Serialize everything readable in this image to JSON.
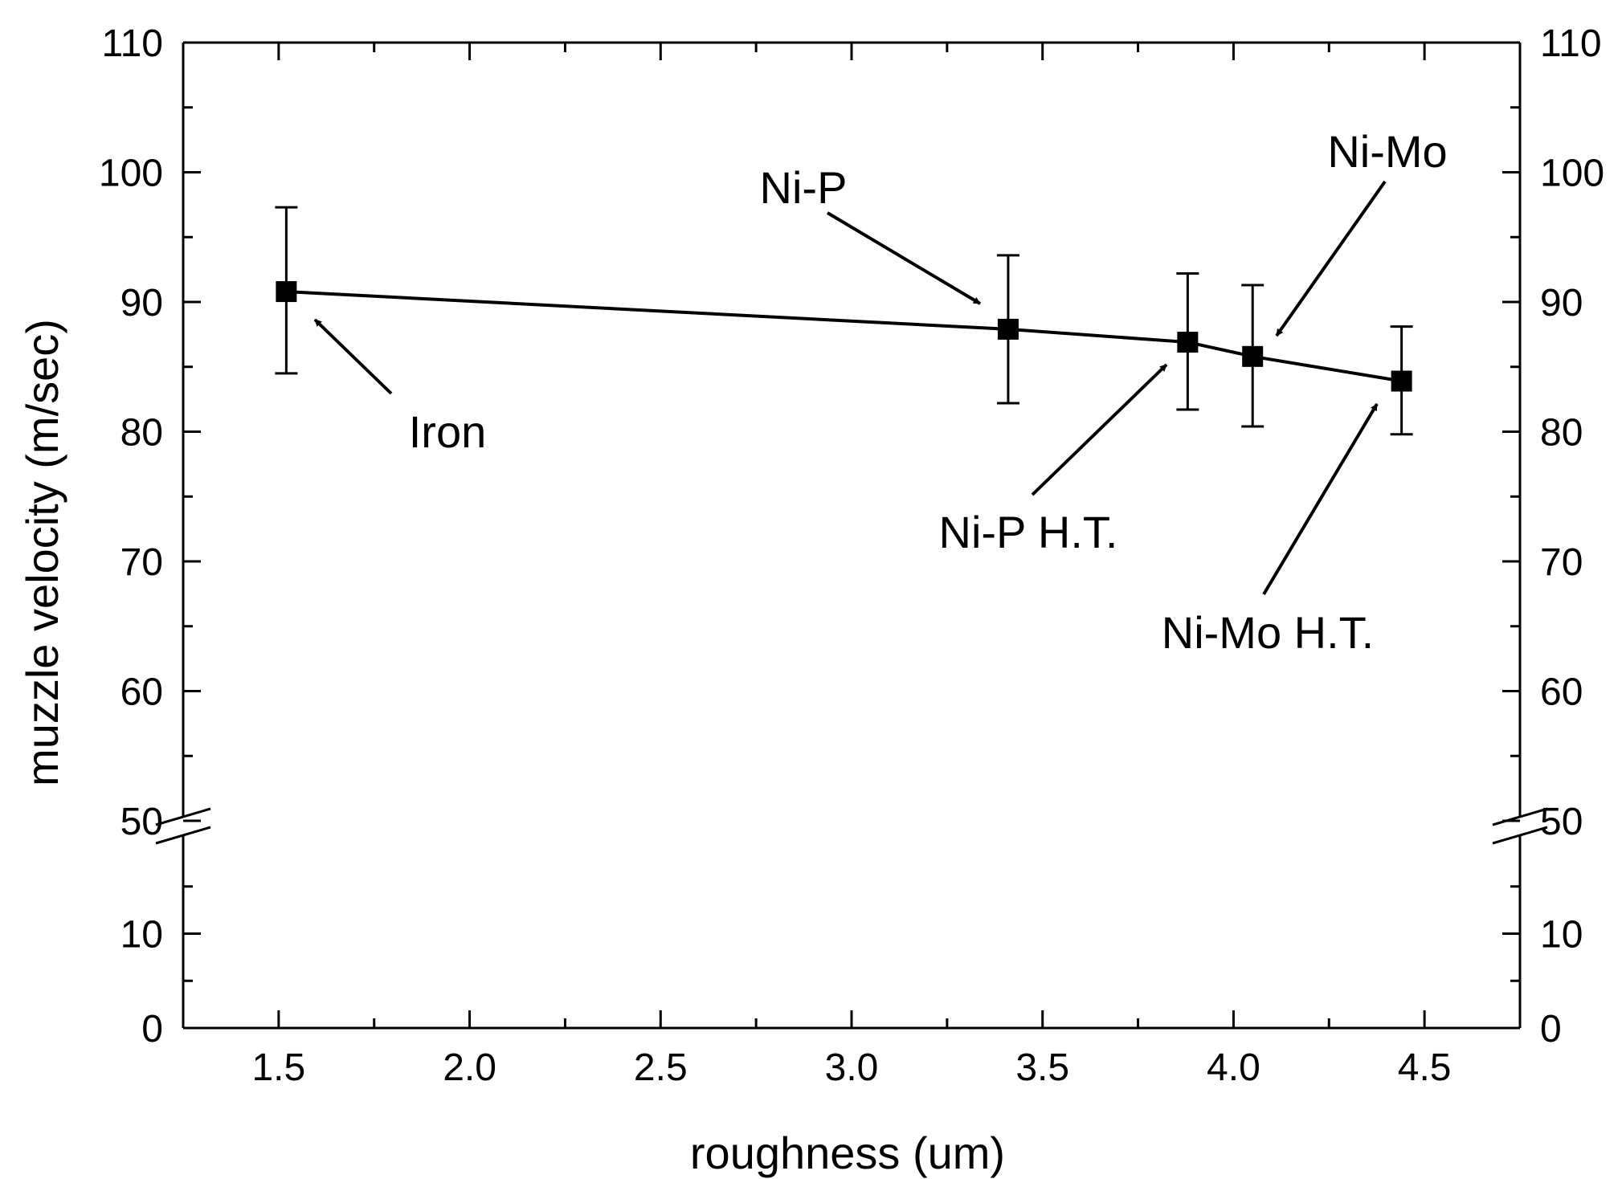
{
  "chart_data": {
    "type": "line",
    "title": "",
    "xlabel": "roughness (um)",
    "ylabel": "muzzle velocity (m/sec)",
    "xlim": [
      1.25,
      4.75
    ],
    "ylim": [
      0,
      110
    ],
    "y_axis_break": [
      20,
      48
    ],
    "x_ticks": [
      1.5,
      2.0,
      2.5,
      3.0,
      3.5,
      4.0,
      4.5
    ],
    "x_tick_labels": [
      "1.5",
      "2.0",
      "2.5",
      "3.0",
      "3.5",
      "4.0",
      "4.5"
    ],
    "y_ticks": [
      0,
      10,
      50,
      60,
      70,
      80,
      90,
      100,
      110
    ],
    "y_tick_labels": [
      "0",
      "10",
      "50",
      "60",
      "70",
      "80",
      "90",
      "100",
      "110"
    ],
    "series": [
      {
        "name": "muzzle velocity",
        "marker": "square",
        "x": [
          1.52,
          3.41,
          3.88,
          4.05,
          4.44
        ],
        "y": [
          90.8,
          87.9,
          86.9,
          85.8,
          83.9
        ],
        "err_low": [
          84.5,
          82.2,
          81.7,
          80.4,
          79.8
        ],
        "err_high": [
          97.3,
          93.6,
          92.2,
          91.3,
          88.1
        ]
      }
    ],
    "annotations": [
      {
        "text": "Iron",
        "point_index": 0
      },
      {
        "text": "Ni-P",
        "point_index": 1
      },
      {
        "text": "Ni-P H.T.",
        "point_index": 2
      },
      {
        "text": "Ni-Mo",
        "point_index": 3
      },
      {
        "text": "Ni-Mo H.T.",
        "point_index": 4
      }
    ]
  }
}
